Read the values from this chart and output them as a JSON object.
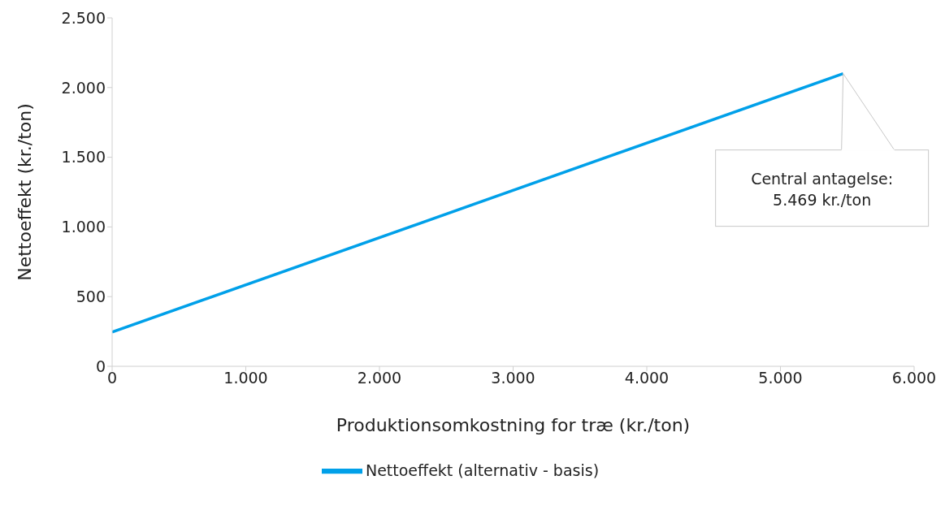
{
  "chart_data": {
    "type": "line",
    "xlabel": "Produktionsomkostning for træ (kr./ton)",
    "ylabel": "Nettoeffekt (kr./ton)",
    "x": [
      0,
      5469
    ],
    "series": [
      {
        "name": "Nettoeffekt (alternativ - basis)",
        "color": "#00a0e9",
        "values": [
          245,
          2100
        ]
      }
    ],
    "xlim": [
      0,
      6000
    ],
    "xticks": [
      0,
      {
        "value": 1000,
        "label": "1.000"
      },
      {
        "value": 2000,
        "label": "2.000"
      },
      {
        "value": 3000,
        "label": "3.000"
      },
      {
        "value": 4000,
        "label": "4.000"
      },
      {
        "value": 5000,
        "label": "5.000"
      },
      {
        "value": 6000,
        "label": "6.000"
      }
    ],
    "ylim": [
      0,
      2500
    ],
    "yticks": [
      0,
      500,
      {
        "value": 1000,
        "label": "1.000"
      },
      {
        "value": 1500,
        "label": "1.500"
      },
      {
        "value": 2000,
        "label": "2.000"
      },
      {
        "value": 2500,
        "label": "2.500"
      }
    ],
    "annotations": [
      {
        "text": "Central antagelse:\n5.469 kr./ton",
        "x": 5469,
        "y": 2100
      }
    ],
    "grid": false,
    "legend": "bottom",
    "marker": "none",
    "line_style": "solid"
  }
}
